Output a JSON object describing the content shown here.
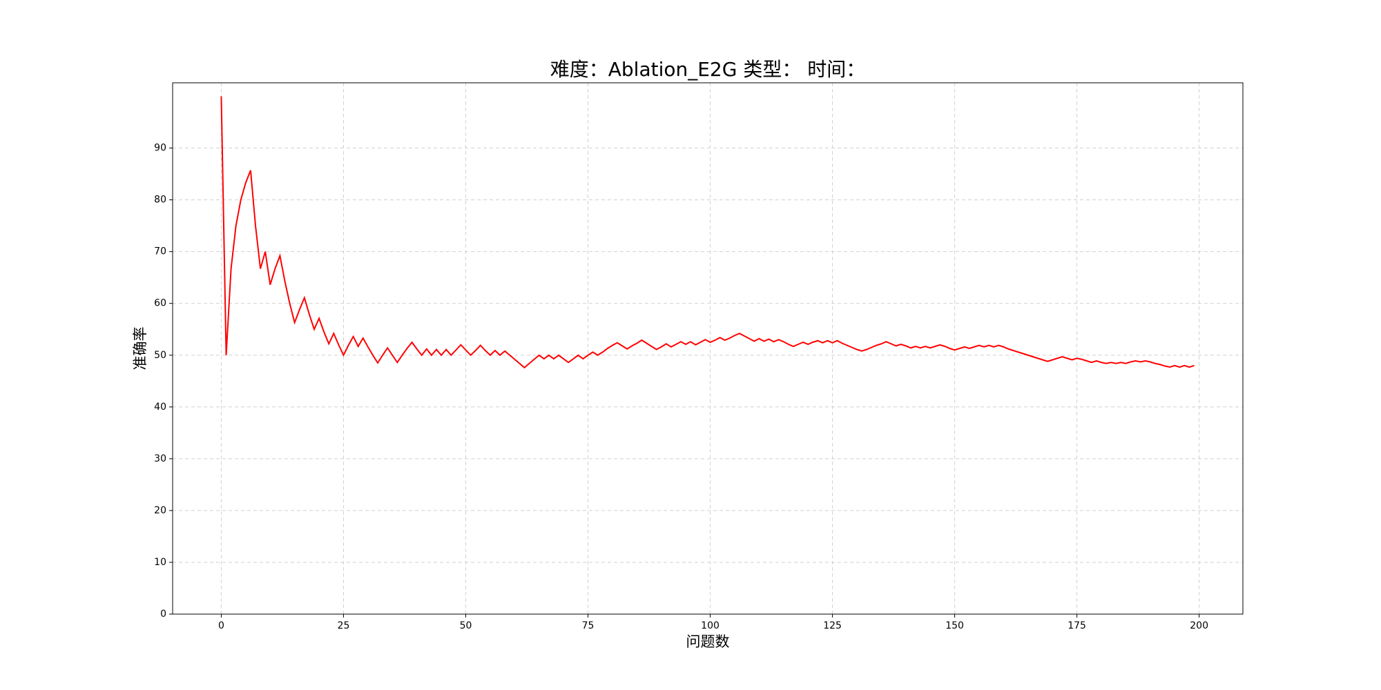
{
  "chart_data": {
    "type": "line",
    "title": "难度：Ablation_E2G 类型： 时间：",
    "x_label": "问题数",
    "y_label": "准确率",
    "color": "#ff0000",
    "grid": true,
    "xlim": [
      -9.95,
      208.95
    ],
    "ylim": [
      0,
      102.6
    ],
    "xticks": [
      0,
      25,
      50,
      75,
      100,
      125,
      150,
      175,
      200
    ],
    "yticks": [
      0,
      10,
      20,
      30,
      40,
      50,
      60,
      70,
      80,
      90
    ],
    "x": [
      0,
      1,
      2,
      3,
      4,
      5,
      6,
      7,
      8,
      9,
      10,
      11,
      12,
      13,
      14,
      15,
      16,
      17,
      18,
      19,
      20,
      21,
      22,
      23,
      24,
      25,
      26,
      27,
      28,
      29,
      30,
      31,
      32,
      33,
      34,
      35,
      36,
      37,
      38,
      39,
      40,
      41,
      42,
      43,
      44,
      45,
      46,
      47,
      48,
      49,
      50,
      51,
      52,
      53,
      54,
      55,
      56,
      57,
      58,
      59,
      60,
      61,
      62,
      63,
      64,
      65,
      66,
      67,
      68,
      69,
      70,
      71,
      72,
      73,
      74,
      75,
      76,
      77,
      78,
      79,
      80,
      81,
      82,
      83,
      84,
      85,
      86,
      87,
      88,
      89,
      90,
      91,
      92,
      93,
      94,
      95,
      96,
      97,
      98,
      99,
      100,
      101,
      102,
      103,
      104,
      105,
      106,
      107,
      108,
      109,
      110,
      111,
      112,
      113,
      114,
      115,
      116,
      117,
      118,
      119,
      120,
      121,
      122,
      123,
      124,
      125,
      126,
      127,
      128,
      129,
      130,
      131,
      132,
      133,
      134,
      135,
      136,
      137,
      138,
      139,
      140,
      141,
      142,
      143,
      144,
      145,
      146,
      147,
      148,
      149,
      150,
      151,
      152,
      153,
      154,
      155,
      156,
      157,
      158,
      159,
      160,
      161,
      162,
      163,
      164,
      165,
      166,
      167,
      168,
      169,
      170,
      171,
      172,
      173,
      174,
      175,
      176,
      177,
      178,
      179,
      180,
      181,
      182,
      183,
      184,
      185,
      186,
      187,
      188,
      189,
      190,
      191,
      192,
      193,
      194,
      195,
      196,
      197,
      198,
      199
    ],
    "values": [
      100,
      50,
      66.7,
      75,
      80,
      83.3,
      85.7,
      75,
      66.7,
      70,
      63.6,
      66.7,
      69.2,
      64.3,
      60,
      56.3,
      58.8,
      61.1,
      57.9,
      55,
      57.1,
      54.5,
      52.2,
      54.2,
      52,
      50,
      51.9,
      53.6,
      51.7,
      53.3,
      51.6,
      50,
      48.5,
      50,
      51.4,
      50,
      48.6,
      50,
      51.3,
      52.5,
      51.2,
      50,
      51.2,
      50,
      51.1,
      50,
      51.1,
      50,
      51,
      52,
      51,
      50,
      50.9,
      51.9,
      50.9,
      50,
      50.9,
      50,
      50.8,
      50,
      49.2,
      48.4,
      47.6,
      48.4,
      49.2,
      50,
      49.3,
      50,
      49.3,
      50,
      49.3,
      48.6,
      49.3,
      50,
      49.3,
      50,
      50.6,
      50,
      50.6,
      51.3,
      51.9,
      52.4,
      51.8,
      51.2,
      51.8,
      52.3,
      52.9,
      52.3,
      51.7,
      51.1,
      51.6,
      52.2,
      51.6,
      52.1,
      52.6,
      52.1,
      52.6,
      52,
      52.5,
      53,
      52.5,
      52.9,
      53.4,
      52.9,
      53.3,
      53.8,
      54.2,
      53.7,
      53.2,
      52.7,
      53.2,
      52.7,
      53.1,
      52.6,
      53,
      52.6,
      52.1,
      51.7,
      52.1,
      52.5,
      52.1,
      52.5,
      52.8,
      52.4,
      52.8,
      52.4,
      52.8,
      52.3,
      51.9,
      51.5,
      51.1,
      50.8,
      51.1,
      51.5,
      51.9,
      52.2,
      52.6,
      52.2,
      51.8,
      52.1,
      51.8,
      51.4,
      51.7,
      51.4,
      51.7,
      51.4,
      51.7,
      52,
      51.7,
      51.3,
      51,
      51.3,
      51.6,
      51.3,
      51.6,
      51.9,
      51.6,
      51.9,
      51.6,
      51.9,
      51.6,
      51.2,
      50.9,
      50.6,
      50.3,
      50,
      49.7,
      49.4,
      49.1,
      48.8,
      49.1,
      49.4,
      49.7,
      49.4,
      49.1,
      49.4,
      49.2,
      48.9,
      48.6,
      48.9,
      48.6,
      48.4,
      48.6,
      48.4,
      48.6,
      48.4,
      48.7,
      48.9,
      48.7,
      48.9,
      48.7,
      48.4,
      48.2,
      47.9,
      47.7,
      48,
      47.7,
      48,
      47.7,
      48
    ]
  }
}
